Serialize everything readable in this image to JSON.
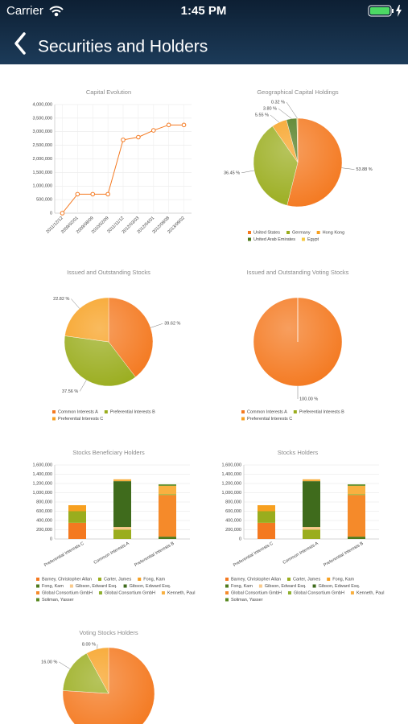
{
  "status_bar": {
    "carrier": "Carrier",
    "time": "1:45 PM"
  },
  "nav": {
    "title": "Securities and Holders"
  },
  "chart_data": [
    {
      "type": "line",
      "title": "Capital Evolution",
      "categories": [
        "2011/12/12",
        "2009/02/01",
        "2009/08/09",
        "2010/02/09",
        "2011/11/12",
        "2012/03/03",
        "2012/04/01",
        "2012/09/08",
        "2013/09/02"
      ],
      "values": [
        0,
        700000,
        700000,
        700000,
        2700000,
        2800000,
        3050000,
        3250000,
        3250000
      ],
      "color": "#f47920",
      "ylim": [
        0,
        4000000
      ],
      "yticks": [
        0,
        {
          "value": 500000,
          "label": "500,000"
        },
        {
          "value": 1000000,
          "label": "1,000,000"
        },
        {
          "value": 1500000,
          "label": "1,500,000"
        },
        {
          "value": 2000000,
          "label": "2,000,000"
        },
        {
          "value": 2500000,
          "label": "2,500,000"
        },
        {
          "value": 3000000,
          "label": "3,000,000"
        },
        {
          "value": 3500000,
          "label": "3,500,000"
        },
        {
          "value": 4000000,
          "label": "4,000,000"
        }
      ],
      "grid": true
    },
    {
      "type": "pie",
      "title": "Geographical Capital Holdings",
      "categories": [
        "United States",
        "Germany",
        "Hong Kong",
        "United Arab Emirates",
        "Egypt"
      ],
      "values": [
        53.88,
        36.45,
        5.55,
        3.8,
        0.32
      ],
      "value_labels": [
        "53.88 %",
        "36.45 %",
        "5.55 %",
        "3.80 %",
        "0.32 %"
      ],
      "colors": [
        "#f47920",
        "#9aad1e",
        "#f7a020",
        "#4e7a1c",
        "#f5c842"
      ]
    },
    {
      "type": "pie",
      "title": "Issued and Outstanding Stocks",
      "categories": [
        "Common Interests A",
        "Preferential Interests B",
        "Preferential Interests C"
      ],
      "values": [
        39.62,
        37.56,
        22.82
      ],
      "value_labels": [
        "39.62 %",
        "37.56 %",
        "22.82 %"
      ],
      "colors": [
        "#f47920",
        "#9aad1e",
        "#f7a020"
      ]
    },
    {
      "type": "pie",
      "title": "Issued and Outstanding Voting Stocks",
      "categories": [
        "Common Interests A",
        "Preferential Interests B",
        "Preferential Interests C"
      ],
      "values": [
        100,
        0,
        0
      ],
      "value_labels": [
        "100.00 %",
        null,
        null
      ],
      "colors": [
        "#f47920",
        "#9aad1e",
        "#f7a020"
      ]
    },
    {
      "type": "bar",
      "title": "Stocks Beneficiary Holders",
      "stacked": true,
      "categories": [
        "Preferential Interests C",
        "Common Interests A",
        "Preferential Interests B"
      ],
      "series": [
        {
          "name": "Barney, Christopher Allan",
          "color": "#f47920",
          "values": [
            350000,
            0,
            0
          ]
        },
        {
          "name": "Carter, James",
          "color": "#9aad1e",
          "values": [
            250000,
            200000,
            0
          ]
        },
        {
          "name": "Fong, Kam",
          "color": "#f7a020",
          "values": [
            130000,
            0,
            0
          ]
        },
        {
          "name": "Fong, Kam",
          "color": "#4e7a1c",
          "values": [
            0,
            0,
            50000
          ]
        },
        {
          "name": "Gibson, Edward Esq.",
          "color": "#f9c98a",
          "values": [
            0,
            60000,
            0
          ]
        },
        {
          "name": "Gibson, Edward Esq.",
          "color": "#3f6b1c",
          "values": [
            0,
            990000,
            0
          ]
        },
        {
          "name": "Global Consortium GmbH",
          "color": "#f58a2a",
          "values": [
            0,
            0,
            900000
          ]
        },
        {
          "name": "Global Consortium GmbH",
          "color": "#8fb030",
          "values": [
            0,
            0,
            20000
          ]
        },
        {
          "name": "Kenneth, Paul",
          "color": "#f9b040",
          "values": [
            0,
            40000,
            180000
          ]
        },
        {
          "name": "Soliman, Yasser",
          "color": "#5a8a22",
          "values": [
            0,
            0,
            30000
          ]
        }
      ],
      "ylim": [
        0,
        1600000
      ],
      "yticks": [
        0,
        {
          "value": 200000,
          "label": "200,000"
        },
        {
          "value": 400000,
          "label": "400,000"
        },
        {
          "value": 600000,
          "label": "600,000"
        },
        {
          "value": 800000,
          "label": "800,000"
        },
        {
          "value": 1000000,
          "label": "1,000,000"
        },
        {
          "value": 1200000,
          "label": "1,200,000"
        },
        {
          "value": 1400000,
          "label": "1,400,000"
        },
        {
          "value": 1600000,
          "label": "1,600,000"
        }
      ],
      "grid": true
    },
    {
      "type": "bar",
      "title": "Stocks Holders",
      "stacked": true,
      "categories": [
        "Preferential Interests C",
        "Common Interests A",
        "Preferential Interests B"
      ],
      "series": [
        {
          "name": "Barney, Christopher Allan",
          "color": "#f47920",
          "values": [
            350000,
            0,
            0
          ]
        },
        {
          "name": "Carter, James",
          "color": "#9aad1e",
          "values": [
            250000,
            200000,
            0
          ]
        },
        {
          "name": "Fong, Kam",
          "color": "#f7a020",
          "values": [
            130000,
            0,
            0
          ]
        },
        {
          "name": "Fong, Kam",
          "color": "#4e7a1c",
          "values": [
            0,
            0,
            50000
          ]
        },
        {
          "name": "Gibson, Edward Esq.",
          "color": "#f9c98a",
          "values": [
            0,
            60000,
            0
          ]
        },
        {
          "name": "Gibson, Edward Esq.",
          "color": "#3f6b1c",
          "values": [
            0,
            990000,
            0
          ]
        },
        {
          "name": "Global Consortium GmbH",
          "color": "#f58a2a",
          "values": [
            0,
            0,
            900000
          ]
        },
        {
          "name": "Global Consortium GmbH",
          "color": "#8fb030",
          "values": [
            0,
            0,
            20000
          ]
        },
        {
          "name": "Kenneth, Paul",
          "color": "#f9b040",
          "values": [
            0,
            40000,
            180000
          ]
        },
        {
          "name": "Soliman, Yasser",
          "color": "#5a8a22",
          "values": [
            0,
            0,
            30000
          ]
        }
      ],
      "ylim": [
        0,
        1600000
      ],
      "yticks": [
        0,
        {
          "value": 200000,
          "label": "200,000"
        },
        {
          "value": 400000,
          "label": "400,000"
        },
        {
          "value": 600000,
          "label": "600,000"
        },
        {
          "value": 800000,
          "label": "800,000"
        },
        {
          "value": 1000000,
          "label": "1,000,000"
        },
        {
          "value": 1200000,
          "label": "1,200,000"
        },
        {
          "value": 1400000,
          "label": "1,400,000"
        },
        {
          "value": 1600000,
          "label": "1,600,000"
        }
      ],
      "grid": true
    },
    {
      "type": "pie",
      "title": "Voting Stocks Holders",
      "categories": [
        null,
        null,
        null
      ],
      "values": [
        76,
        16,
        8
      ],
      "value_labels": [
        null,
        "16.00 %",
        "8.00 %"
      ],
      "colors": [
        "#f47920",
        "#9aad1e",
        "#f7a020"
      ]
    }
  ]
}
